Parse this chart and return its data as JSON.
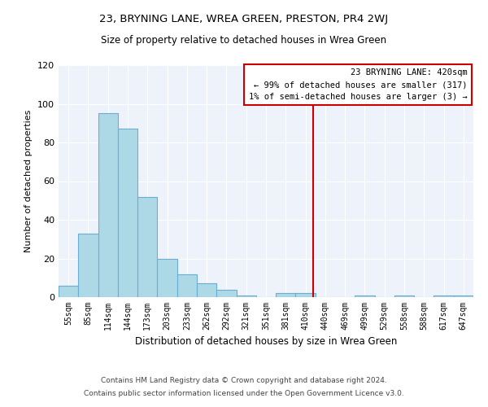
{
  "title": "23, BRYNING LANE, WREA GREEN, PRESTON, PR4 2WJ",
  "subtitle": "Size of property relative to detached houses in Wrea Green",
  "xlabel": "Distribution of detached houses by size in Wrea Green",
  "ylabel": "Number of detached properties",
  "categories": [
    "55sqm",
    "85sqm",
    "114sqm",
    "144sqm",
    "173sqm",
    "203sqm",
    "233sqm",
    "262sqm",
    "292sqm",
    "321sqm",
    "351sqm",
    "381sqm",
    "410sqm",
    "440sqm",
    "469sqm",
    "499sqm",
    "529sqm",
    "558sqm",
    "588sqm",
    "617sqm",
    "647sqm"
  ],
  "values": [
    6,
    33,
    95,
    87,
    52,
    20,
    12,
    7,
    4,
    1,
    0,
    2,
    2,
    0,
    0,
    1,
    0,
    1,
    0,
    1,
    1
  ],
  "bar_color": "#add8e6",
  "bar_edge_color": "#6aaed6",
  "vline_color": "#cc0000",
  "vline_x": 12.37,
  "annotation_line1": "23 BRYNING LANE: 420sqm",
  "annotation_line2": "← 99% of detached houses are smaller (317)",
  "annotation_line3": "1% of semi-detached houses are larger (3) →",
  "annotation_box_color": "#cc0000",
  "ylim": [
    0,
    120
  ],
  "yticks": [
    0,
    20,
    40,
    60,
    80,
    100,
    120
  ],
  "background_color": "#eef2fb",
  "footer_line1": "Contains HM Land Registry data © Crown copyright and database right 2024.",
  "footer_line2": "Contains public sector information licensed under the Open Government Licence v3.0."
}
